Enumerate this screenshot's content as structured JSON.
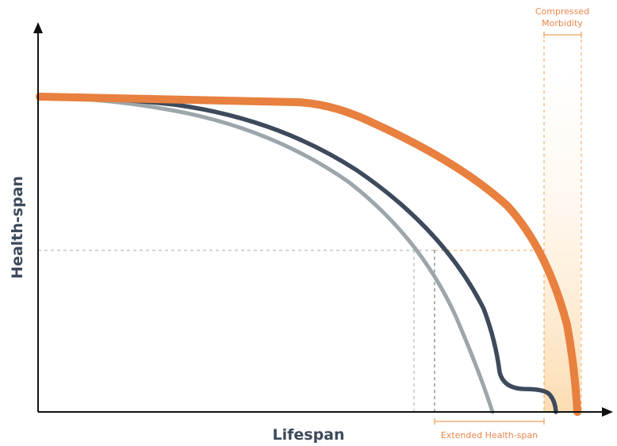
{
  "axes": {
    "x_label": "Lifespan",
    "y_label": "Health-span"
  },
  "annotations": {
    "compressed_line1": "Compressed",
    "compressed_line2": "Morbidity",
    "extended": "Extended Health-span"
  },
  "colors": {
    "orange_curve": "#e8803f",
    "dark_curve": "#3d4a5c",
    "gray_curve": "#9ca6ab",
    "axis": "#111111",
    "orange_guides": "#f0a05a",
    "gray_guides": "#9a9a9a",
    "shade": "#fde6c8"
  }
}
